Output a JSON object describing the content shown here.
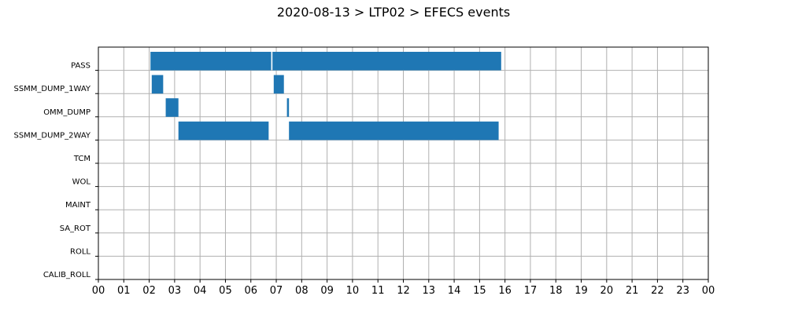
{
  "chart_data": {
    "type": "bar",
    "orientation": "horizontal-timeline",
    "title": "2020-08-13 > LTP02 > EFECS events",
    "xlabel": "",
    "ylabel": "",
    "xlim": [
      0,
      24
    ],
    "x_tick_labels": [
      "00",
      "01",
      "02",
      "03",
      "04",
      "05",
      "06",
      "07",
      "08",
      "09",
      "10",
      "11",
      "12",
      "13",
      "14",
      "15",
      "16",
      "17",
      "18",
      "19",
      "20",
      "21",
      "22",
      "23",
      "00"
    ],
    "grid": true,
    "bar_color": "#1f77b4",
    "lanes": [
      "PASS",
      "SSMM_DUMP_1WAY",
      "OMM_DUMP",
      "SSMM_DUMP_2WAY",
      "TCM",
      "WOL",
      "MAINT",
      "SA_ROT",
      "ROLL",
      "CALIB_ROLL"
    ],
    "events": [
      {
        "lane": "PASS",
        "start": 2.05,
        "end": 6.8
      },
      {
        "lane": "PASS",
        "start": 6.85,
        "end": 15.85
      },
      {
        "lane": "SSMM_DUMP_1WAY",
        "start": 2.1,
        "end": 2.55
      },
      {
        "lane": "SSMM_DUMP_1WAY",
        "start": 6.9,
        "end": 7.3
      },
      {
        "lane": "OMM_DUMP",
        "start": 2.65,
        "end": 3.15
      },
      {
        "lane": "OMM_DUMP",
        "start": 7.42,
        "end": 7.5
      },
      {
        "lane": "SSMM_DUMP_2WAY",
        "start": 3.15,
        "end": 6.7
      },
      {
        "lane": "SSMM_DUMP_2WAY",
        "start": 7.5,
        "end": 15.75
      }
    ]
  }
}
